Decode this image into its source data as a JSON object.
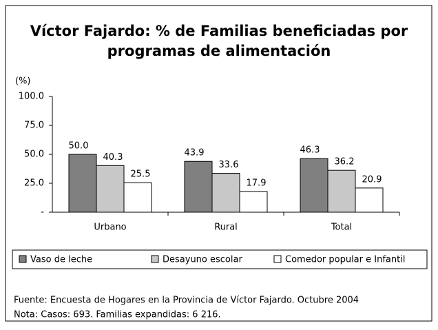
{
  "chart_data": {
    "type": "bar",
    "title": [
      "Víctor Fajardo: % de Familias beneficiadas por",
      "programas de alimentación"
    ],
    "y_label": "(%)",
    "categories": [
      "Urbano",
      "Rural",
      "Total"
    ],
    "series": [
      {
        "name": "Vaso de leche",
        "color": "#808080",
        "values": [
          50.0,
          43.9,
          46.3
        ],
        "value_labels": [
          "50.0",
          "43.9",
          "46.3"
        ]
      },
      {
        "name": "Desayuno escolar",
        "color": "#c8c8c8",
        "values": [
          40.3,
          33.6,
          36.2
        ],
        "value_labels": [
          "40.3",
          "33.6",
          "36.2"
        ]
      },
      {
        "name": "Comedor popular e Infantil",
        "color": "#ffffff",
        "values": [
          25.5,
          17.9,
          20.9
        ],
        "value_labels": [
          "25.5",
          "17.9",
          "20.9"
        ]
      }
    ],
    "ylim": [
      0,
      100
    ],
    "yticks": [
      {
        "value": 0,
        "label": "-"
      },
      {
        "value": 25,
        "label": "25.0"
      },
      {
        "value": 50,
        "label": "50.0"
      },
      {
        "value": 75,
        "label": "75.0"
      },
      {
        "value": 100,
        "label": "100.0"
      }
    ],
    "legend": "bottom",
    "notes": [
      "Fuente: Encuesta de Hogares en la Provincia de Víctor Fajardo. Octubre 2004",
      "Nota: Casos: 693.   Familias expandidas: 6 216."
    ]
  }
}
